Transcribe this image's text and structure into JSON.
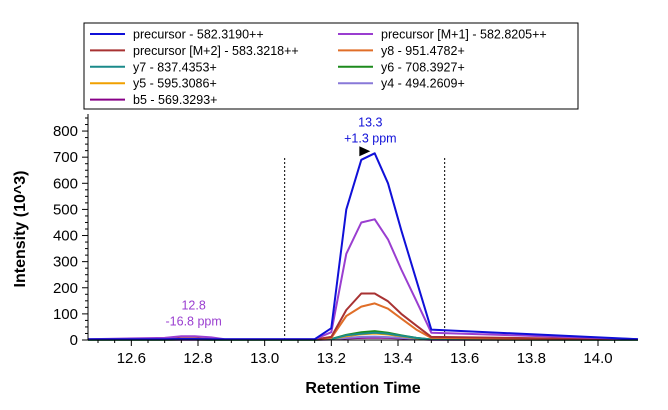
{
  "chart_data": {
    "type": "line",
    "title": "",
    "xlabel": "Retention Time",
    "ylabel": "Intensity (10^3)",
    "xlim": [
      12.47,
      14.12
    ],
    "ylim": [
      0,
      850
    ],
    "x_ticks": [
      "12.6",
      "12.8",
      "13.0",
      "13.2",
      "13.4",
      "13.6",
      "13.8",
      "14.0"
    ],
    "y_ticks": [
      "0",
      "100",
      "200",
      "300",
      "400",
      "500",
      "600",
      "700",
      "800"
    ],
    "integration_boundaries": [
      13.06,
      13.54
    ],
    "legend_position": "top",
    "grid": false,
    "x": [
      12.47,
      12.7,
      12.75,
      12.79,
      12.84,
      12.88,
      13.15,
      13.2,
      13.245,
      13.29,
      13.33,
      13.37,
      13.41,
      13.455,
      13.5,
      14.12
    ],
    "series": [
      {
        "name": "precursor - 582.3190++",
        "color": "#1010d8",
        "values": [
          3,
          3,
          4,
          4,
          3,
          3,
          3,
          45,
          500,
          690,
          715,
          600,
          420,
          230,
          40,
          3
        ]
      },
      {
        "name": "precursor [M+1] - 582.8205++",
        "color": "#9a3ed0",
        "values": [
          3,
          8,
          14,
          14,
          10,
          3,
          3,
          30,
          330,
          450,
          462,
          385,
          270,
          150,
          28,
          3
        ]
      },
      {
        "name": "precursor [M+2] - 583.3218++",
        "color": "#a83232",
        "values": [
          2,
          4,
          6,
          6,
          4,
          2,
          2,
          12,
          115,
          178,
          178,
          148,
          100,
          55,
          12,
          2
        ]
      },
      {
        "name": "y8 - 951.4782+",
        "color": "#e06e28",
        "values": [
          2,
          3,
          5,
          5,
          3,
          2,
          2,
          8,
          92,
          128,
          140,
          120,
          82,
          40,
          8,
          2
        ]
      },
      {
        "name": "y7 - 837.4353+",
        "color": "#1a8a8a",
        "values": [
          1,
          1,
          2,
          2,
          1,
          1,
          1,
          3,
          18,
          24,
          28,
          24,
          16,
          8,
          2,
          1
        ]
      },
      {
        "name": "y6 - 708.3927+",
        "color": "#1c8a1c",
        "values": [
          1,
          1,
          2,
          2,
          1,
          1,
          1,
          4,
          20,
          30,
          34,
          28,
          18,
          8,
          2,
          1
        ]
      },
      {
        "name": "y5 - 595.3086+",
        "color": "#f0a000",
        "values": [
          1,
          1,
          2,
          2,
          1,
          1,
          1,
          3,
          15,
          22,
          25,
          21,
          14,
          7,
          2,
          1
        ]
      },
      {
        "name": "y4 - 494.2609+",
        "color": "#8878d8",
        "values": [
          1,
          1,
          1,
          1,
          1,
          1,
          1,
          2,
          8,
          12,
          13,
          11,
          8,
          4,
          1,
          1
        ]
      },
      {
        "name": "b5 - 569.3293+",
        "color": "#880088",
        "values": [
          1,
          1,
          1,
          1,
          1,
          1,
          1,
          2,
          6,
          8,
          9,
          8,
          6,
          3,
          1,
          1
        ]
      }
    ],
    "annotations": [
      {
        "text": "13.3",
        "subtext": "+1.3 ppm",
        "x": 13.32,
        "y": 715,
        "color": "#1010d8",
        "marker": true
      },
      {
        "text": "12.8",
        "subtext": "-16.8 ppm",
        "x": 12.79,
        "y": 14,
        "color": "#9a3ed0",
        "marker": false
      }
    ]
  }
}
